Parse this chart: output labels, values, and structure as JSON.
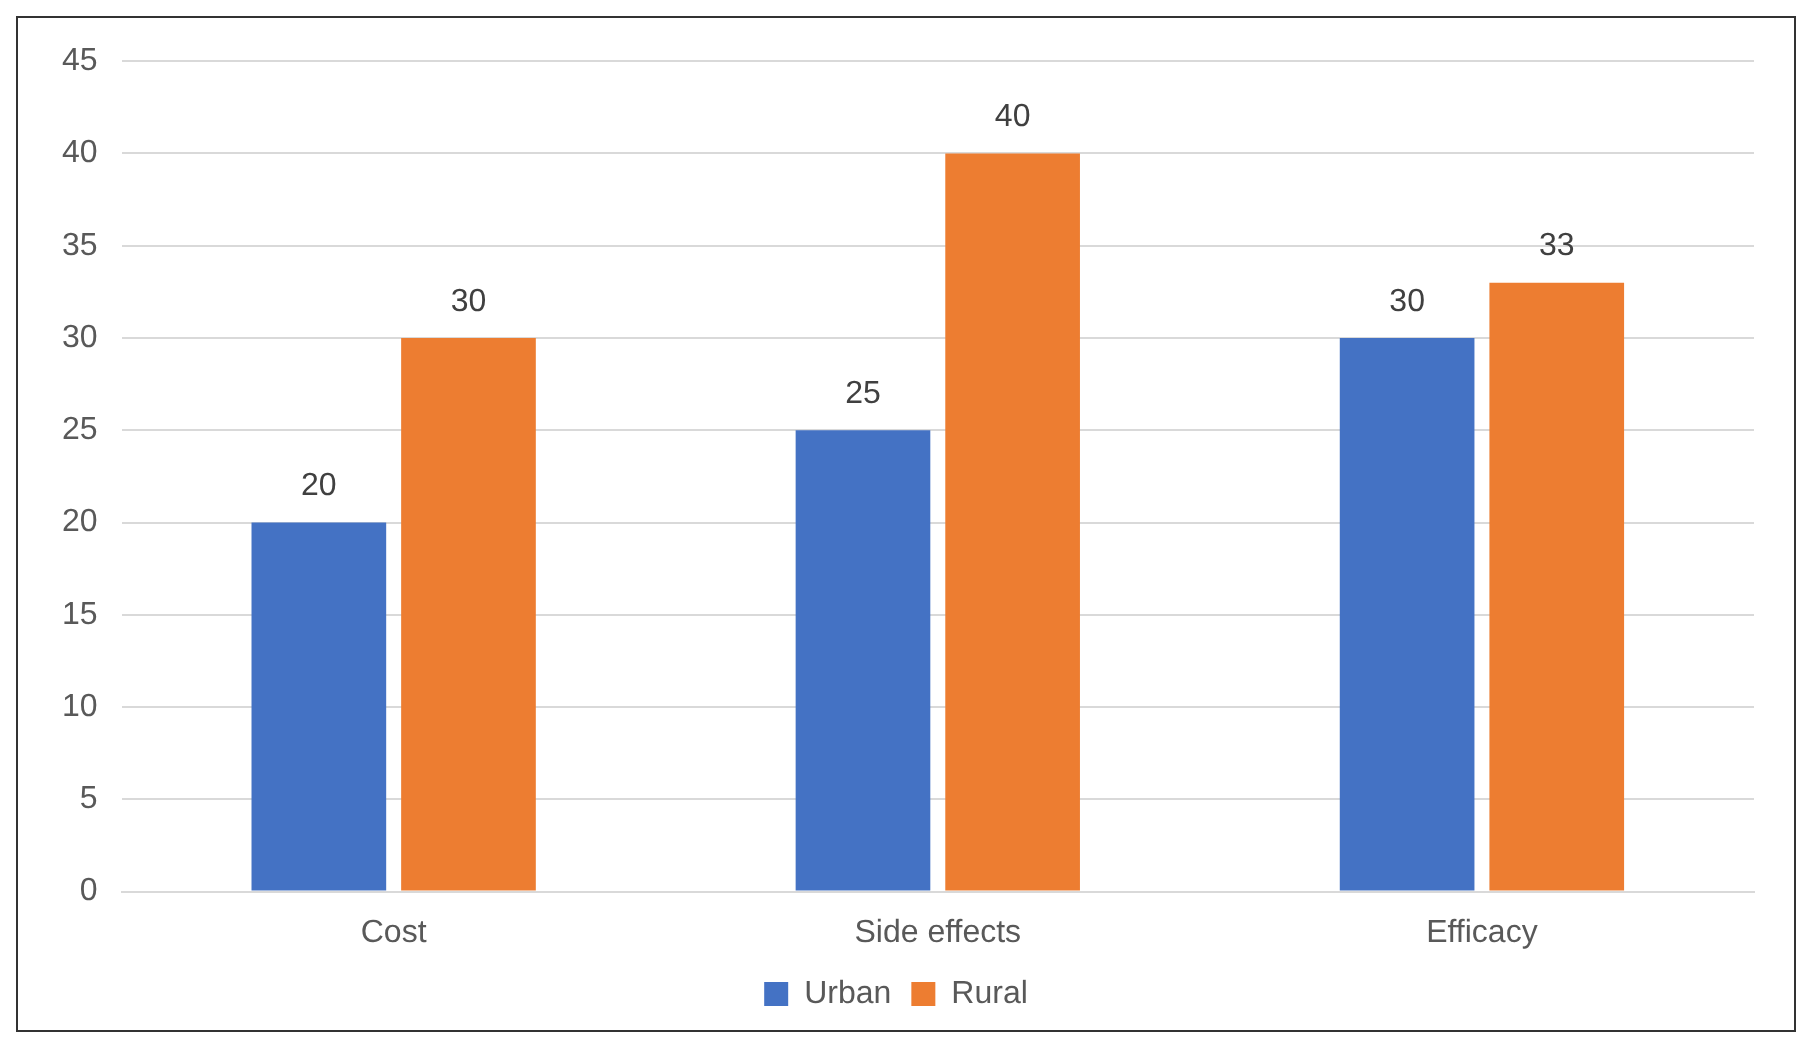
{
  "chart_data": {
    "type": "bar",
    "categories": [
      "Cost",
      "Side effects",
      "Efficacy"
    ],
    "series": [
      {
        "name": "Urban",
        "color": "#4472c4",
        "values": [
          20,
          25,
          30
        ]
      },
      {
        "name": "Rural",
        "color": "#ed7d31",
        "values": [
          30,
          40,
          33
        ]
      }
    ],
    "ylim": [
      0,
      45
    ],
    "yticks": [
      0,
      5,
      10,
      15,
      20,
      25,
      30,
      35,
      40,
      45
    ],
    "grid": "y",
    "legend": "bottom",
    "data_labels": true
  }
}
